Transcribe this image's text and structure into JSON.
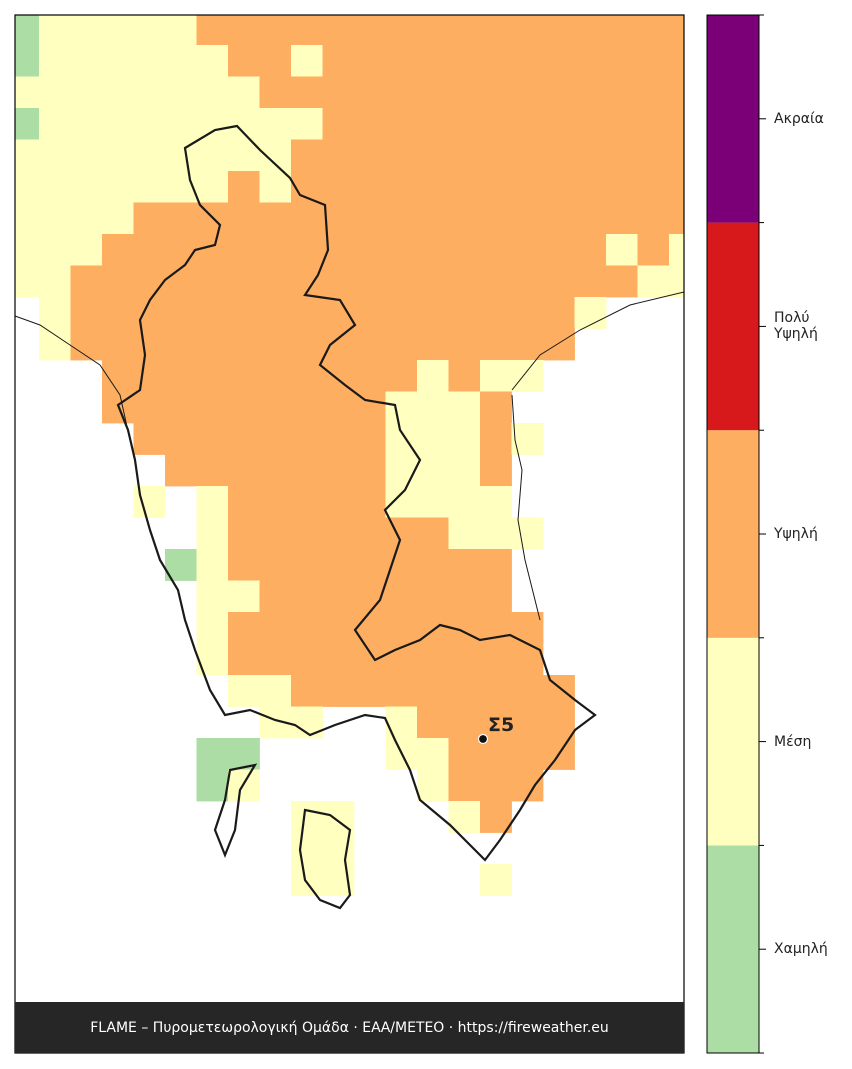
{
  "legend": {
    "classes": [
      {
        "label": "Χαμηλή",
        "color": "#abdda4"
      },
      {
        "label": "Μέση",
        "color": "#ffffbf"
      },
      {
        "label": "Υψηλή",
        "color": "#fdae61"
      },
      {
        "label": "Πολύ Υψηλή",
        "color": "#d7191c"
      },
      {
        "label": "Ακραία",
        "color": "#7b0077"
      }
    ]
  },
  "station": {
    "label": "Σ5"
  },
  "footer": "FLAME – Πυρομετεωρολογική Ομάδα · ΕΑΑ/METEO · https://fireweather.eu"
}
